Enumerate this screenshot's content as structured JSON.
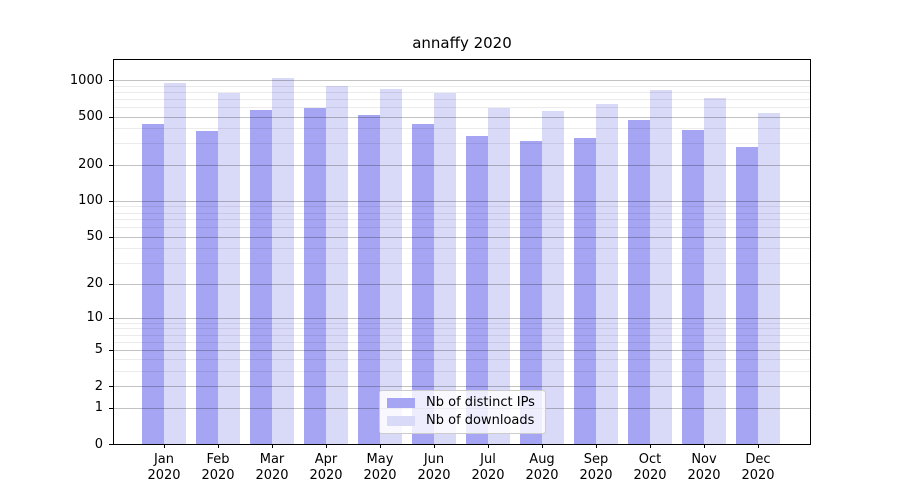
{
  "title": "annaffy 2020",
  "legend": {
    "items": [
      {
        "label": "Nb of distinct IPs",
        "color": "#a5a5f3"
      },
      {
        "label": "Nb of downloads",
        "color": "#d9d9f8"
      }
    ],
    "position": "lower center"
  },
  "colors": {
    "distinct_ips_bar": "#a5a5f3",
    "downloads_bar": "#d9d9f8",
    "axis": "#000000",
    "major_grid": "#c4c4c4",
    "minor_grid": "#ebebeb"
  },
  "chart_data": {
    "type": "bar",
    "title": "annaffy 2020",
    "xlabel": "",
    "ylabel": "",
    "scale": "log1p",
    "grid": true,
    "legend_position": "lower center",
    "categories": [
      "Jan 2020",
      "Feb 2020",
      "Mar 2020",
      "Apr 2020",
      "May 2020",
      "Jun 2020",
      "Jul 2020",
      "Aug 2020",
      "Sep 2020",
      "Oct 2020",
      "Nov 2020",
      "Dec 2020"
    ],
    "series": [
      {
        "name": "Nb of distinct IPs",
        "color": "#a5a5f3",
        "values": [
          430,
          378,
          565,
          585,
          512,
          438,
          345,
          315,
          334,
          467,
          386,
          278
        ]
      },
      {
        "name": "Nb of downloads",
        "color": "#d9d9f8",
        "values": [
          955,
          785,
          1050,
          890,
          845,
          778,
          590,
          555,
          640,
          836,
          705,
          536
        ]
      }
    ],
    "yticks": [
      1000,
      500,
      200,
      100,
      50,
      20,
      10,
      5,
      2,
      1,
      0
    ],
    "minor_gridlines": [
      900,
      800,
      700,
      600,
      400,
      300,
      90,
      80,
      70,
      60,
      40,
      30,
      9,
      8,
      7,
      6,
      4,
      3
    ],
    "ylim": [
      0,
      1470
    ]
  }
}
